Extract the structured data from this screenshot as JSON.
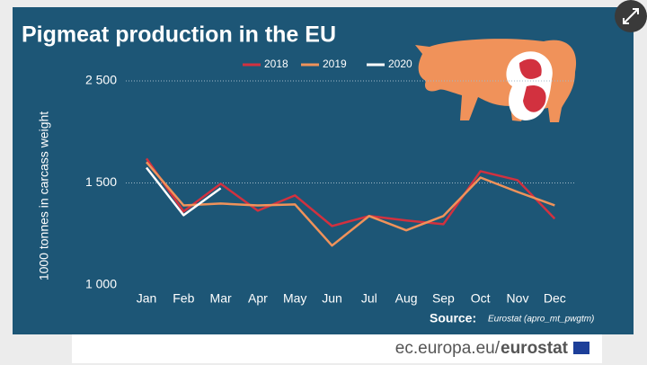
{
  "chart_data": {
    "type": "line",
    "title": "Pigmeat production in the EU",
    "y_label": "1000 tonnes in carcass weight",
    "categories": [
      "Jan",
      "Feb",
      "Mar",
      "Apr",
      "May",
      "Jun",
      "Jul",
      "Aug",
      "Sep",
      "Oct",
      "Nov",
      "Dec"
    ],
    "series": [
      {
        "name": "2018",
        "color": "#d2313f",
        "values": [
          1739,
          1360,
          1496,
          1364,
          1439,
          1289,
          1338,
          1316,
          1298,
          1615,
          1527,
          1325
        ]
      },
      {
        "name": "2019",
        "color": "#f0925a",
        "values": [
          1704,
          1390,
          1399,
          1390,
          1395,
          1193,
          1338,
          1268,
          1338,
          1553,
          1456,
          1390
        ]
      },
      {
        "name": "2020",
        "color": "#ffffff",
        "values": [
          1650,
          1342,
          1474,
          null,
          null,
          null,
          null,
          null,
          null,
          null,
          null,
          null
        ]
      }
    ],
    "ylim": [
      1000,
      2500
    ],
    "yticks": [
      {
        "value": 1000,
        "label": "1 000"
      },
      {
        "value": 1500,
        "label": "1 500"
      },
      {
        "value": 2500,
        "label": "2 500"
      }
    ],
    "grid": true,
    "source_label": "Source:",
    "source": "Eurostat (apro_mt_pwgtm)",
    "footer": {
      "site": "ec.europa.eu/",
      "brand": "eurostat"
    }
  }
}
